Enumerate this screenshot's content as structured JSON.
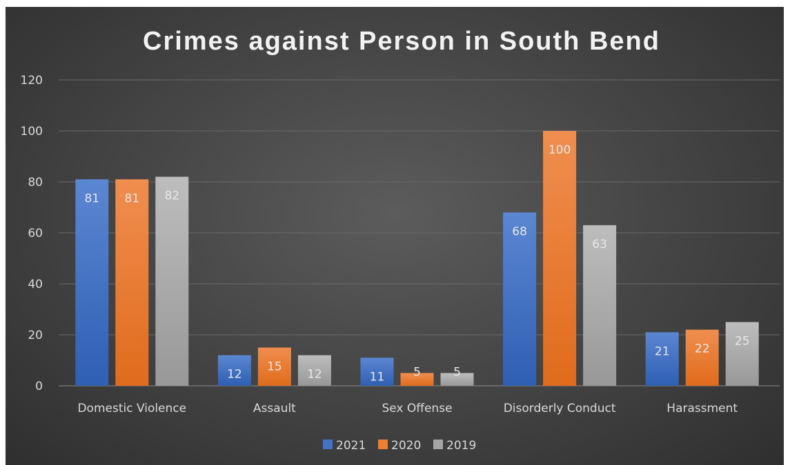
{
  "chart_data": {
    "type": "bar",
    "title": "Crimes against Person in South Bend",
    "xlabel": "",
    "ylabel": "",
    "ylim": [
      0,
      120
    ],
    "yticks": [
      0,
      20,
      40,
      60,
      80,
      100,
      120
    ],
    "grid": true,
    "legend_position": "bottom",
    "categories": [
      "Domestic Violence",
      "Assault",
      "Sex Offense",
      "Disorderly Conduct",
      "Harassment"
    ],
    "series": [
      {
        "name": "2021",
        "color": "#4472c4",
        "values": [
          81,
          12,
          11,
          68,
          21
        ]
      },
      {
        "name": "2020",
        "color": "#ed7d31",
        "values": [
          81,
          15,
          5,
          100,
          22
        ]
      },
      {
        "name": "2019",
        "color": "#a5a5a5",
        "values": [
          82,
          12,
          5,
          63,
          25
        ]
      }
    ]
  }
}
